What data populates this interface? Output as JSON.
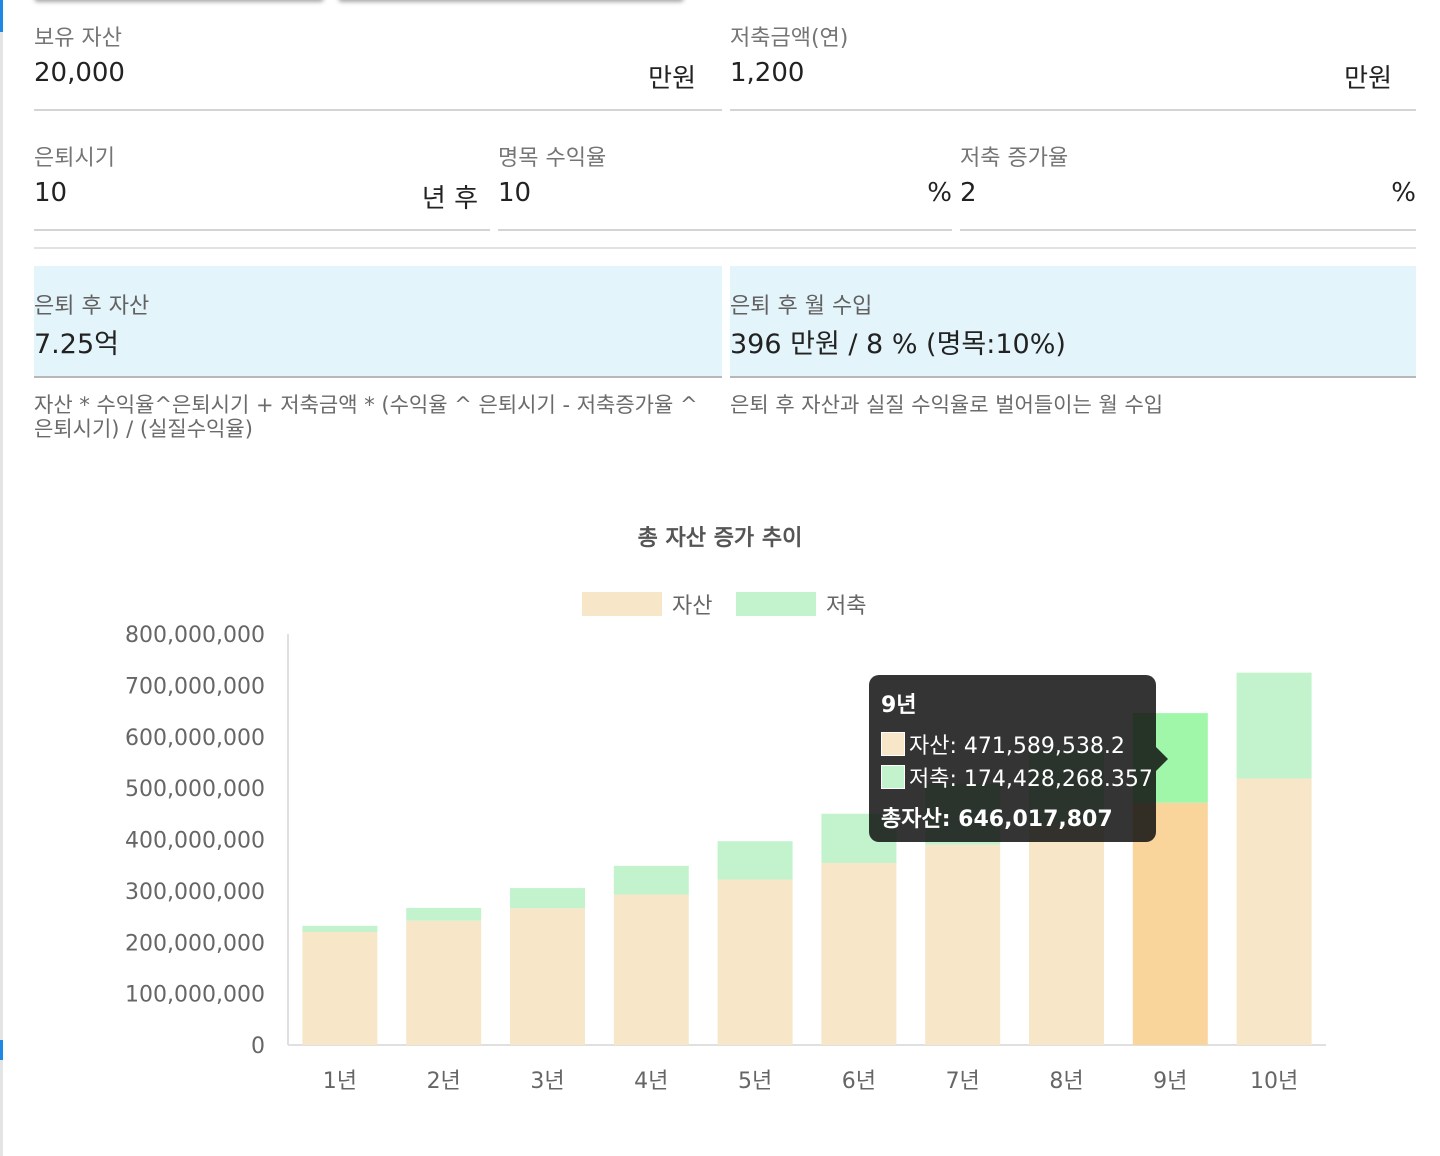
{
  "inputs": {
    "assets": {
      "label": "보유 자산",
      "value": "20,000",
      "unit": "만원"
    },
    "savings": {
      "label": "저축금액(연)",
      "value": "1,200",
      "unit": "만원"
    },
    "retire": {
      "label": "은퇴시기",
      "value": "10",
      "unit": "년 후"
    },
    "return_rate": {
      "label": "명목 수익율",
      "value": "10",
      "unit": "%"
    },
    "savings_growth": {
      "label": "저축 증가율",
      "value": "2",
      "unit": "%"
    }
  },
  "results": {
    "asset_after": {
      "label": "은퇴 후 자산",
      "value": "7.25억",
      "helper": "자산 * 수익율^은퇴시기 + 저축금액 * (수익율 ^ 은퇴시기 - 저축증가율 ^ 은퇴시기) / (실질수익율)"
    },
    "monthly_income": {
      "label": "은퇴 후 월 수입",
      "value": "396 만원 / 8 % (명목:10%)",
      "helper": "은퇴 후 자산과 실질 수익율로 벌어들이는 월 수입"
    }
  },
  "colors": {
    "asset": "#f8e6c9",
    "savings": "#c3f3cc",
    "asset_hover": "#f9d59c",
    "savings_hover": "#a0f7aa"
  },
  "chart_data": {
    "type": "bar",
    "stacked": true,
    "title": "총 자산 증가 추이",
    "categories": [
      "1년",
      "2년",
      "3년",
      "4년",
      "5년",
      "6년",
      "7년",
      "8년",
      "9년",
      "10년"
    ],
    "series": [
      {
        "name": "자산",
        "values": [
          220000000,
          242000000,
          266200000,
          292820000,
          322102000,
          354312200,
          389743420,
          428717762,
          471589538.2,
          518748492
        ]
      },
      {
        "name": "저축",
        "values": [
          12000000,
          24840000,
          39300000,
          55900000,
          74600000,
          95800000,
          119300000,
          145500000,
          174428268.357,
          206000000
        ]
      }
    ],
    "ylim": [
      0,
      800000000
    ],
    "yticks": [
      "0",
      "100,000,000",
      "200,000,000",
      "300,000,000",
      "400,000,000",
      "500,000,000",
      "600,000,000",
      "700,000,000",
      "800,000,000"
    ],
    "ytick_values": [
      0,
      100000000,
      200000000,
      300000000,
      400000000,
      500000000,
      600000000,
      700000000,
      800000000
    ],
    "legend": "top",
    "highlight_index": 8,
    "tooltip": {
      "title": "9년",
      "asset_line": "자산: 471,589,538.2",
      "savings_line": "저축: 174,428,268.357",
      "total_line": "총자산: 646,017,807"
    }
  }
}
